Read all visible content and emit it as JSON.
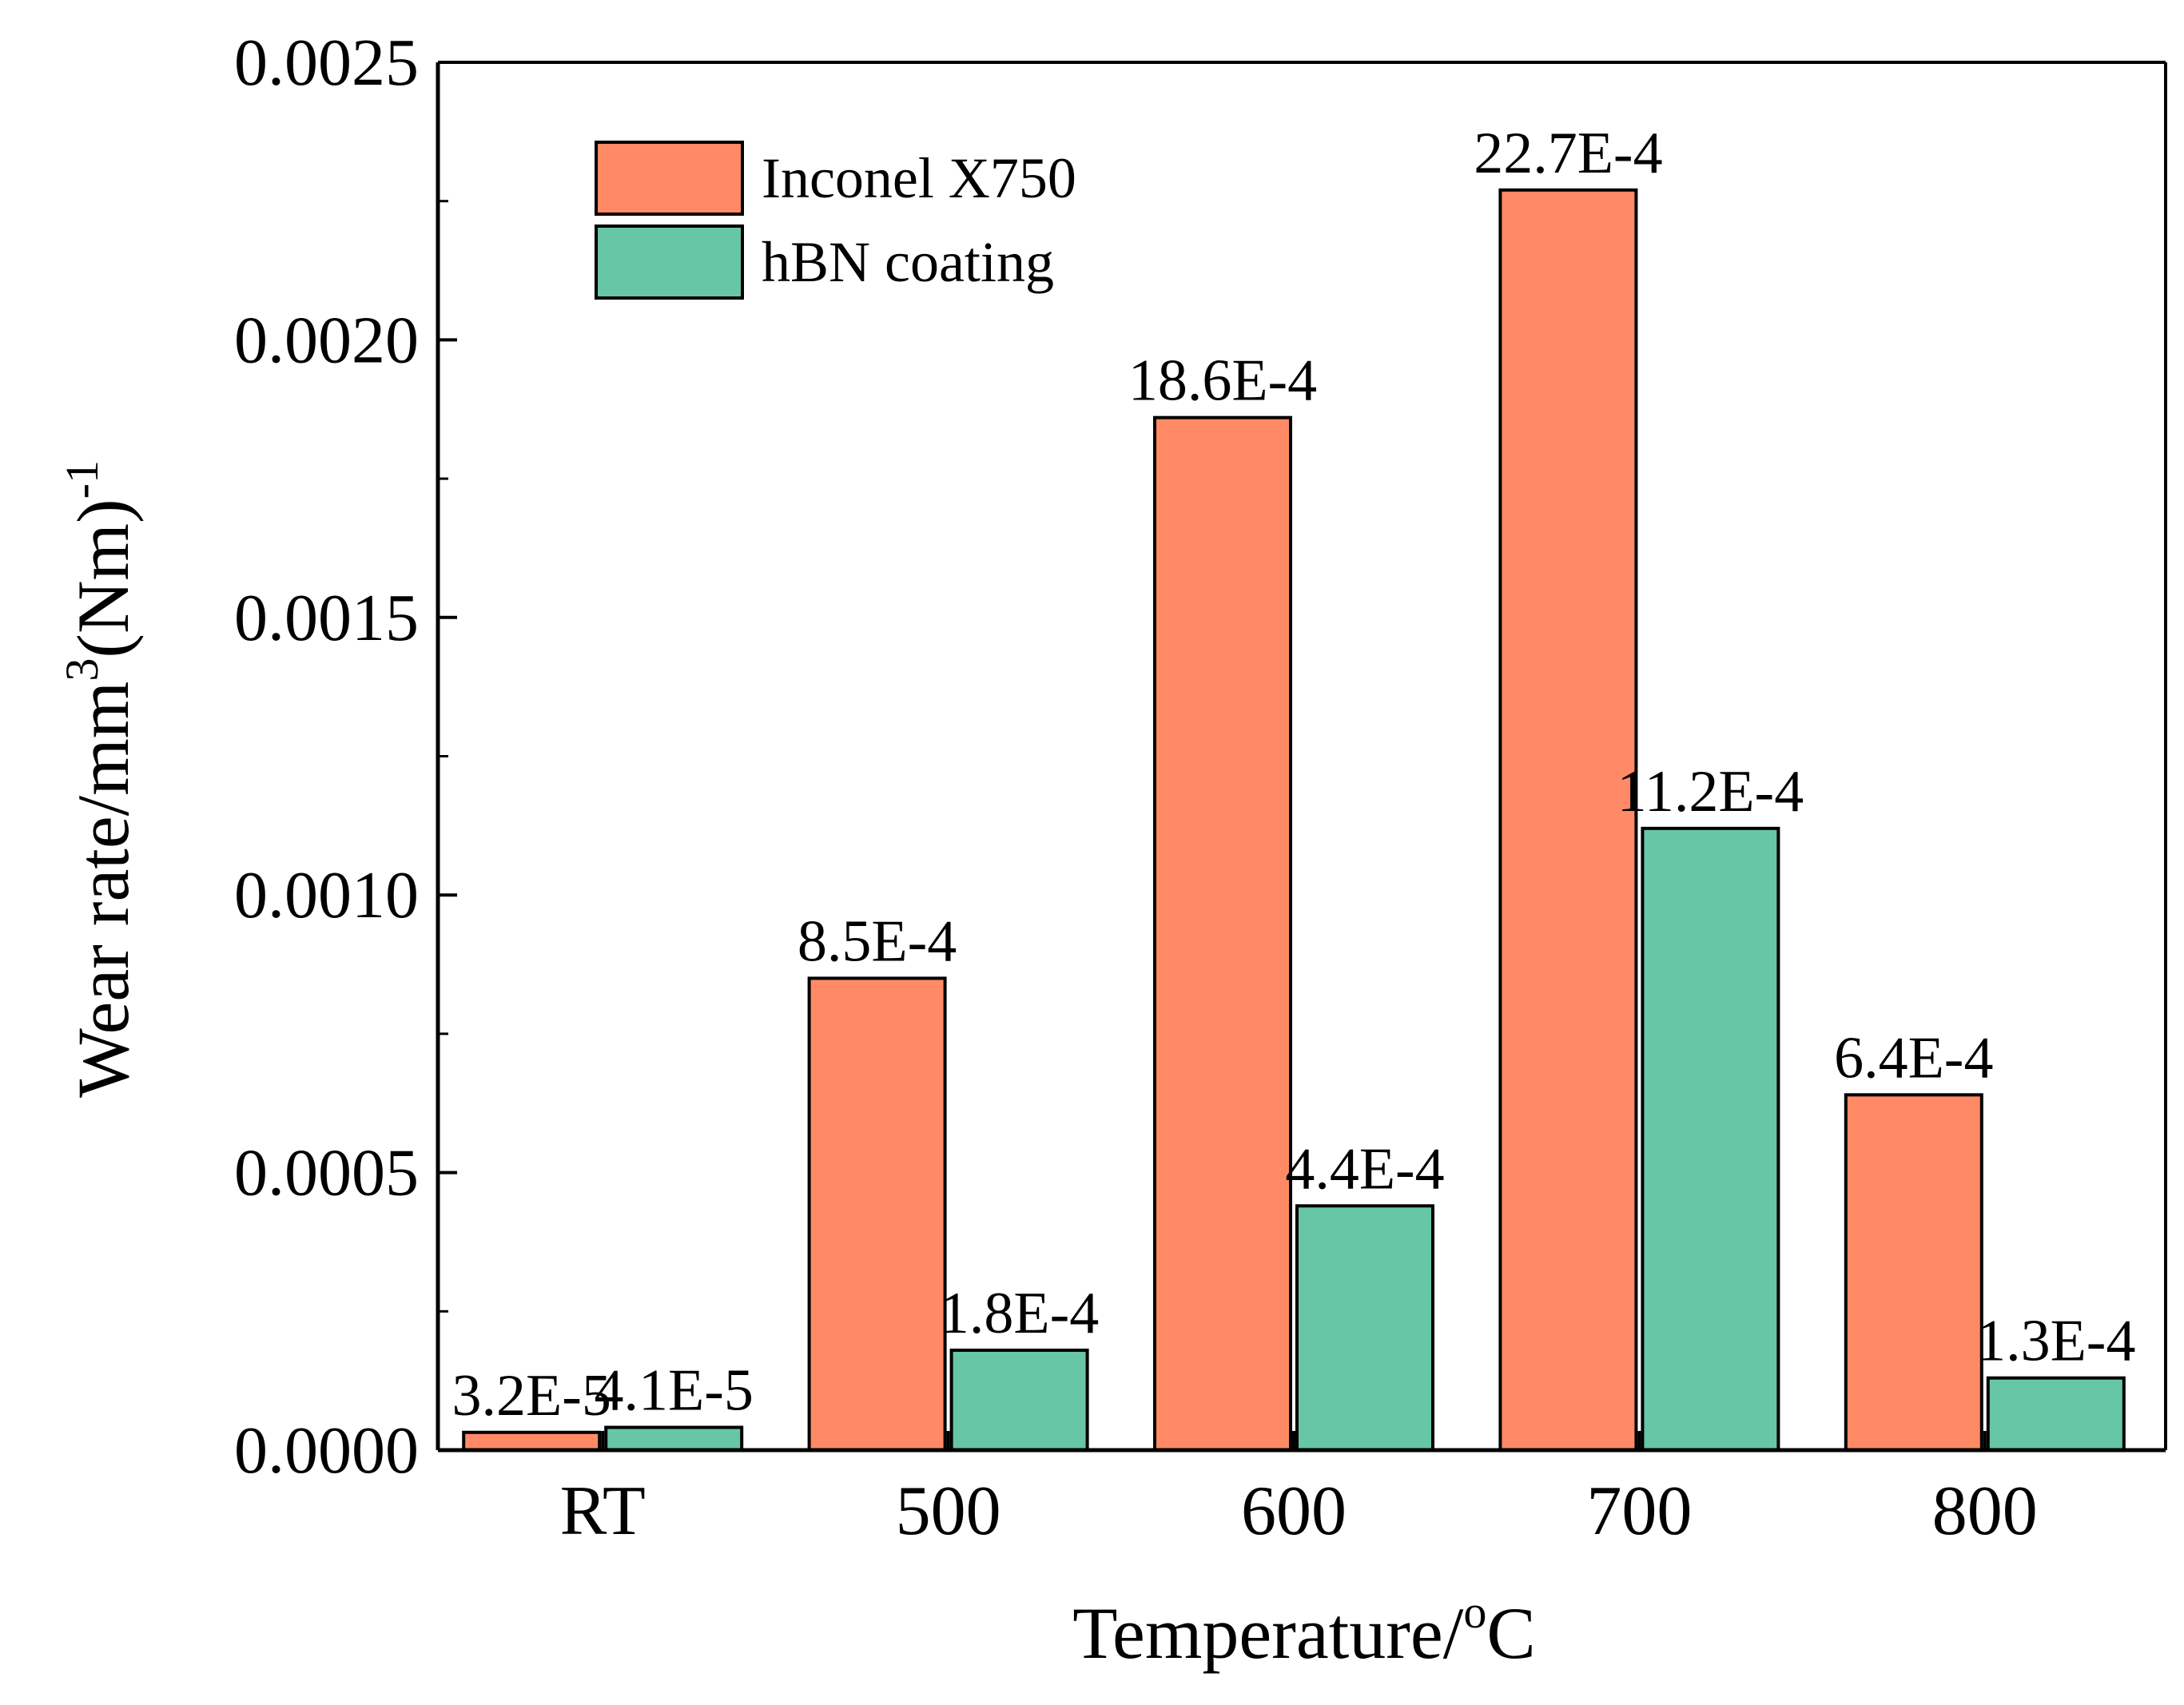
{
  "chart_data": {
    "type": "bar",
    "categories": [
      "RT",
      "500",
      "600",
      "700",
      "800"
    ],
    "series": [
      {
        "name": "Inconel X750",
        "color": "#FF8A65",
        "values": [
          3.2e-05,
          0.00085,
          0.00186,
          0.00227,
          0.00064
        ],
        "labels": [
          "3.2E-5",
          "8.5E-4",
          "18.6E-4",
          "22.7E-4",
          "6.4E-4"
        ]
      },
      {
        "name": "hBN coating",
        "color": "#66C6A5",
        "values": [
          4.1e-05,
          0.00018,
          0.00044,
          0.00112,
          0.00013
        ],
        "labels": [
          "4.1E-5",
          "1.8E-4",
          "4.4E-4",
          "11.2E-4",
          "1.3E-4"
        ]
      }
    ],
    "xlabel": {
      "main": "Temperature/",
      "sup": "o",
      "unit": "C"
    },
    "ylabel": {
      "part1": "Wear rate/mm",
      "sup1": "3",
      "part2": "(Nm)",
      "sup2": "-1"
    },
    "ylim": [
      0,
      0.0025
    ],
    "yticks": [
      "0.0000",
      "0.0005",
      "0.0010",
      "0.0015",
      "0.0020",
      "0.0025"
    ],
    "ytick_values": [
      0,
      0.0005,
      0.001,
      0.0015,
      0.002,
      0.0025
    ],
    "legend_position": "top-left"
  }
}
